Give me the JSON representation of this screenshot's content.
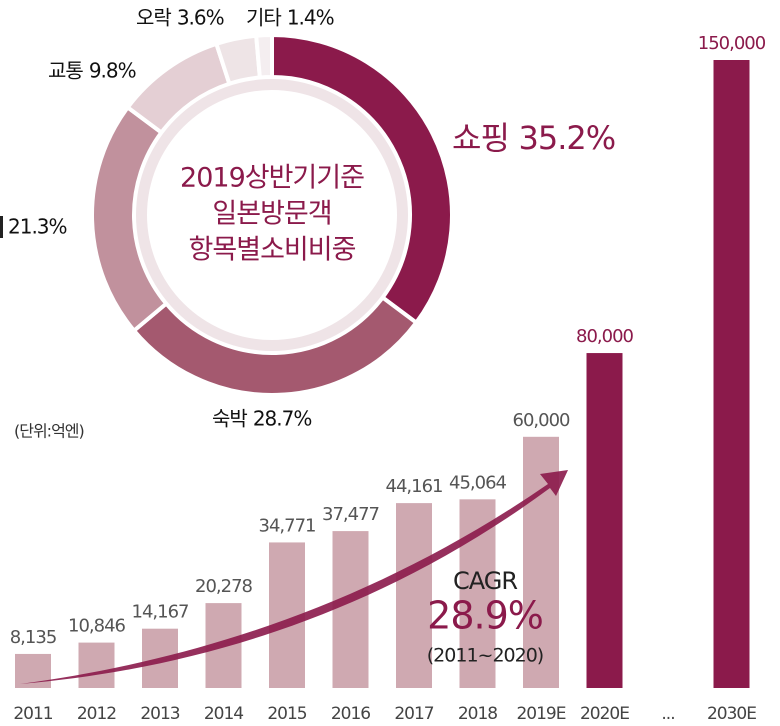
{
  "chart_data": [
    {
      "type": "bar",
      "categories": [
        "2011",
        "2012",
        "2013",
        "2014",
        "2015",
        "2016",
        "2017",
        "2018",
        "2019E",
        "2020E",
        "...",
        "2030E"
      ],
      "values": [
        8135,
        10846,
        14167,
        20278,
        34771,
        37477,
        44161,
        45064,
        60000,
        80000,
        null,
        150000
      ],
      "value_labels": [
        "8,135",
        "10,846",
        "14,167",
        "20,278",
        "34,771",
        "37,477",
        "44,161",
        "45,064",
        "60,000",
        "80,000",
        null,
        "150,000"
      ],
      "colors": [
        "#cfa9b1",
        "#cfa9b1",
        "#cfa9b1",
        "#cfa9b1",
        "#cfa9b1",
        "#cfa9b1",
        "#cfa9b1",
        "#cfa9b1",
        "#cfa9b1",
        "#8b1a4b",
        null,
        "#8b1a4b"
      ],
      "ylim": [
        0,
        150000
      ],
      "annotations": [
        "(단위:억엔)",
        "CAGR",
        "28.9%",
        "(2011~2020)"
      ]
    },
    {
      "type": "pie",
      "title": [
        "2019상반기기준",
        "일본방문객",
        "항목별소비비중"
      ],
      "categories": [
        "쇼핑",
        "숙박",
        null,
        "교통",
        "오락",
        "기타"
      ],
      "values": [
        35.2,
        28.7,
        21.3,
        9.8,
        3.6,
        1.4
      ],
      "value_labels": [
        "35.2%",
        "28.7%",
        "21.3%",
        "9.8%",
        "3.6%",
        "1.4%"
      ],
      "colors": [
        "#8b1a4b",
        "#a4596f",
        "#c1919d",
        "#e4cfd4",
        "#eee4e6",
        "#f4eef0"
      ]
    }
  ]
}
